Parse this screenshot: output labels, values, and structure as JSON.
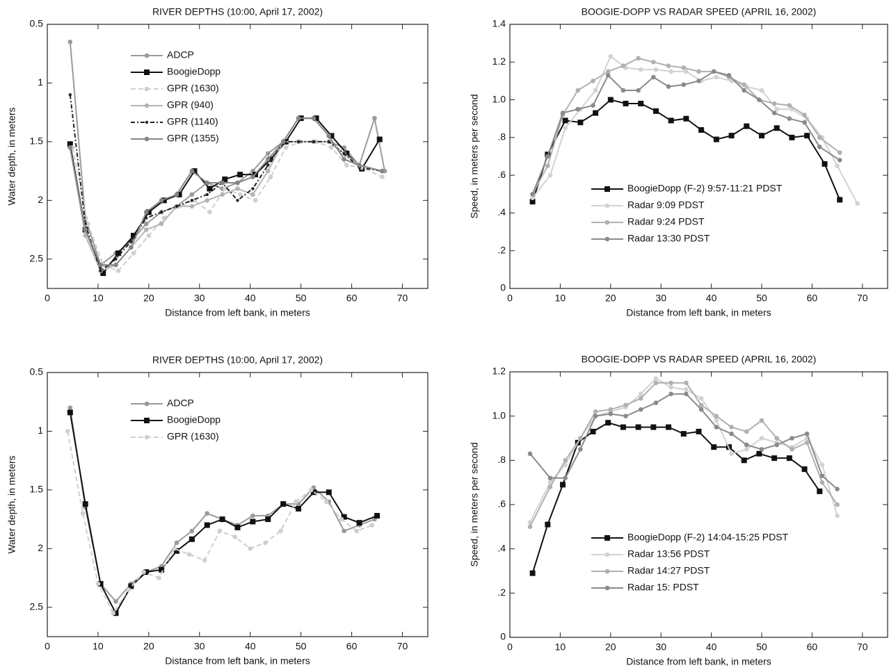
{
  "chart_data": [
    {
      "type": "line",
      "title": "RIVER DEPTHS (10:00, April 17, 2002)",
      "x_label": "Distance from left bank, in meters",
      "y_label": "Water depth, in meters",
      "xlim": [
        0,
        75
      ],
      "xticks": [
        0,
        10,
        20,
        30,
        40,
        50,
        60,
        70
      ],
      "ylim": [
        0.5,
        2.75
      ],
      "yticks": [
        0.5,
        1,
        1.5,
        2,
        2.5
      ],
      "invert_y": true,
      "legend": "upper left",
      "series": [
        {
          "name": "ADCP",
          "color": "#9a9a9a",
          "marker": "circle",
          "line_style": "solid",
          "x": [
            4.5,
            7.5,
            10.5,
            13.5,
            16.5,
            19.5,
            22.5,
            25.5,
            28.5,
            31.5,
            34.5,
            37.5,
            40.5,
            43.5,
            46.5,
            49.5,
            52.5,
            55.5,
            58.5,
            61.5,
            64.5,
            66.5
          ],
          "values": [
            0.65,
            2.15,
            2.55,
            2.45,
            2.35,
            2.2,
            2.1,
            2.05,
            1.95,
            1.85,
            1.9,
            1.85,
            1.75,
            1.6,
            1.5,
            1.5,
            1.5,
            1.5,
            1.55,
            1.7,
            1.3,
            1.75
          ]
        },
        {
          "name": "BoogieDopp",
          "color": "#111111",
          "marker": "square",
          "line_style": "solid",
          "x": [
            4.5,
            7.5,
            11,
            14,
            17,
            20,
            23,
            26,
            29,
            32,
            35,
            38,
            41,
            44,
            47,
            50,
            53,
            56,
            59,
            62,
            65.5
          ],
          "values": [
            1.52,
            2.25,
            2.62,
            2.45,
            2.3,
            2.1,
            2.0,
            1.95,
            1.75,
            1.9,
            1.82,
            1.78,
            1.78,
            1.65,
            1.5,
            1.3,
            1.3,
            1.45,
            1.6,
            1.73,
            1.48
          ]
        },
        {
          "name": "GPR (1630)",
          "color": "#cfcfcf",
          "marker": "circle",
          "line_style": "dashed",
          "x": [
            5,
            8,
            11,
            14,
            17,
            20,
            23,
            26,
            29,
            32,
            35,
            38,
            41,
            44,
            47,
            50,
            53,
            56,
            59,
            62,
            66
          ],
          "values": [
            1.55,
            2.2,
            2.55,
            2.6,
            2.45,
            2.3,
            2.15,
            2.05,
            2.0,
            2.1,
            1.9,
            1.95,
            2.0,
            1.8,
            1.55,
            1.5,
            1.5,
            1.55,
            1.7,
            1.72,
            1.8
          ]
        },
        {
          "name": "GPR (940)",
          "color": "#b5b5b5",
          "marker": "circle",
          "line_style": "solid",
          "x": [
            4.5,
            7.5,
            10.5,
            13.5,
            16.5,
            19.5,
            22.5,
            25.5,
            28.5,
            31.5,
            34.5,
            37.5,
            40.5,
            43.5,
            46.5,
            49.5,
            52.5,
            55.5,
            58.5,
            61.5,
            66
          ],
          "values": [
            1.55,
            2.3,
            2.6,
            2.55,
            2.4,
            2.25,
            2.2,
            2.05,
            2.05,
            2.0,
            1.95,
            1.9,
            1.95,
            1.75,
            1.5,
            1.5,
            1.5,
            1.5,
            1.6,
            1.7,
            1.75
          ]
        },
        {
          "name": "GPR (1140)",
          "color": "#222222",
          "marker": "star",
          "line_style": "dashdot",
          "x": [
            4.5,
            7.5,
            10.5,
            13.5,
            16.5,
            19.5,
            22.5,
            25.5,
            28.5,
            31.5,
            34.5,
            37.5,
            40.5,
            43.5,
            46.5,
            49.5,
            52.5,
            55.5,
            58.5,
            61.5,
            66
          ],
          "values": [
            1.1,
            2.2,
            2.6,
            2.5,
            2.35,
            2.15,
            2.1,
            2.05,
            2.0,
            1.95,
            1.85,
            2.0,
            1.9,
            1.7,
            1.5,
            1.5,
            1.5,
            1.5,
            1.6,
            1.72,
            1.75
          ]
        },
        {
          "name": "GPR (1355)",
          "color": "#858585",
          "marker": "circle",
          "line_style": "solid",
          "x": [
            4.5,
            7.5,
            10.5,
            13.5,
            16.5,
            19.5,
            22.5,
            25.5,
            28.5,
            31.5,
            34.5,
            37.5,
            40.5,
            43.5,
            46.5,
            49.5,
            52.5,
            55.5,
            58.5,
            61.5,
            66
          ],
          "values": [
            1.55,
            2.25,
            2.55,
            2.55,
            2.4,
            2.1,
            2.0,
            1.95,
            1.75,
            1.85,
            1.85,
            1.85,
            1.8,
            1.65,
            1.5,
            1.3,
            1.3,
            1.45,
            1.65,
            1.7,
            1.75
          ]
        }
      ]
    },
    {
      "type": "line",
      "title": "BOOGIE-DOPP VS RADAR SPEED (APRIL 16, 2002)",
      "x_label": "Distance from left bank, in meters",
      "y_label": "Speed, in meters per second",
      "xlim": [
        0,
        75
      ],
      "xticks": [
        0,
        10,
        20,
        30,
        40,
        50,
        60,
        70
      ],
      "ylim": [
        0,
        1.4
      ],
      "yticks": [
        0,
        {
          "value": 0.2,
          "label": ".2"
        },
        {
          "value": 0.4,
          "label": ".4"
        },
        {
          "value": 0.6,
          "label": ".6"
        },
        {
          "value": 0.8,
          "label": ".8"
        },
        {
          "value": 1,
          "label": "1.0"
        },
        1.2,
        1.4
      ],
      "legend": "lower center",
      "series": [
        {
          "name": "BoogieDopp (F-2) 9:57-11:21 PDST",
          "color": "#111111",
          "marker": "square",
          "line_style": "solid",
          "x": [
            4.5,
            7.5,
            11,
            14,
            17,
            20,
            23,
            26,
            29,
            32,
            35,
            38,
            41,
            44,
            47,
            50,
            53,
            56,
            59,
            62.5,
            65.5
          ],
          "values": [
            0.46,
            0.71,
            0.89,
            0.88,
            0.93,
            1.0,
            0.98,
            0.98,
            0.94,
            0.89,
            0.9,
            0.84,
            0.79,
            0.81,
            0.86,
            0.81,
            0.85,
            0.8,
            0.81,
            0.66,
            0.47
          ]
        },
        {
          "name": "Radar 9:09 PDST",
          "color": "#d2d2d2",
          "marker": "circle",
          "line_style": "solid",
          "x": [
            4.5,
            8,
            11,
            14,
            17,
            20,
            23,
            26,
            29,
            32,
            35,
            38,
            41,
            44,
            47,
            50,
            53,
            56,
            59,
            62,
            65,
            69
          ],
          "values": [
            0.48,
            0.6,
            0.85,
            0.95,
            1.05,
            1.23,
            1.17,
            1.16,
            1.16,
            1.15,
            1.15,
            1.1,
            1.12,
            1.1,
            1.07,
            1.05,
            0.95,
            0.95,
            0.9,
            0.8,
            0.65,
            0.45
          ]
        },
        {
          "name": "Radar 9:24 PDST",
          "color": "#b0b0b0",
          "marker": "circle",
          "line_style": "solid",
          "x": [
            4.5,
            7.5,
            10.5,
            13.5,
            16.5,
            19.5,
            22.5,
            25.5,
            28.5,
            31.5,
            34.5,
            37.5,
            40.5,
            43.5,
            46.5,
            49.5,
            52.5,
            55.5,
            58.5,
            61.5,
            65.5
          ],
          "values": [
            0.5,
            0.65,
            0.92,
            1.05,
            1.1,
            1.15,
            1.18,
            1.22,
            1.2,
            1.18,
            1.17,
            1.15,
            1.15,
            1.12,
            1.08,
            1.0,
            0.98,
            0.97,
            0.92,
            0.8,
            0.72
          ]
        },
        {
          "name": "Radar 13:30 PDST",
          "color": "#8a8a8a",
          "marker": "circle",
          "line_style": "solid",
          "x": [
            4.5,
            7.5,
            10.5,
            13.5,
            16.5,
            19.5,
            22.5,
            25.5,
            28.5,
            31.5,
            34.5,
            37.5,
            40.5,
            43.5,
            46.5,
            49.5,
            52.5,
            55.5,
            58.5,
            61.5,
            65.5
          ],
          "values": [
            0.5,
            0.7,
            0.93,
            0.95,
            0.97,
            1.13,
            1.05,
            1.05,
            1.12,
            1.07,
            1.08,
            1.1,
            1.15,
            1.13,
            1.05,
            1.0,
            0.93,
            0.9,
            0.88,
            0.75,
            0.68
          ]
        }
      ]
    },
    {
      "type": "line",
      "title": "RIVER DEPTHS (10:00, April 17, 2002)",
      "x_label": "Distance from left bank, in meters",
      "y_label": "Water depth, in meters",
      "xlim": [
        0,
        75
      ],
      "xticks": [
        0,
        10,
        20,
        30,
        40,
        50,
        60,
        70
      ],
      "ylim": [
        0.5,
        2.75
      ],
      "yticks": [
        0.5,
        1,
        1.5,
        2,
        2.5
      ],
      "invert_y": true,
      "legend": "upper left",
      "series": [
        {
          "name": "ADCP",
          "color": "#9a9a9a",
          "marker": "circle",
          "line_style": "solid",
          "x": [
            4.5,
            7.5,
            10.5,
            13.5,
            16.5,
            19.5,
            22.5,
            25.5,
            28.5,
            31.5,
            34.5,
            37.5,
            40.5,
            43.5,
            46.5,
            49.5,
            52.5,
            55.5,
            58.5,
            61.5,
            64.5
          ],
          "values": [
            0.8,
            1.65,
            2.3,
            2.45,
            2.3,
            2.2,
            2.15,
            1.95,
            1.85,
            1.7,
            1.75,
            1.8,
            1.72,
            1.72,
            1.62,
            1.62,
            1.48,
            1.6,
            1.85,
            1.8,
            1.75
          ]
        },
        {
          "name": "BoogieDopp",
          "color": "#111111",
          "marker": "square",
          "line_style": "solid",
          "x": [
            4.5,
            7.5,
            10.5,
            13.5,
            16.5,
            19.5,
            22.5,
            25.5,
            28.5,
            31.5,
            34.5,
            37.5,
            40.5,
            43.5,
            46.5,
            49.5,
            52.5,
            55.5,
            58.5,
            61.5,
            65
          ],
          "values": [
            0.84,
            1.62,
            2.3,
            2.55,
            2.32,
            2.2,
            2.18,
            2.02,
            1.92,
            1.8,
            1.75,
            1.82,
            1.77,
            1.75,
            1.62,
            1.66,
            1.52,
            1.52,
            1.73,
            1.78,
            1.72
          ]
        },
        {
          "name": "GPR (1630)",
          "color": "#cfcfcf",
          "marker": "circle",
          "line_style": "dashed",
          "x": [
            4,
            7,
            10,
            13,
            16,
            19,
            22,
            25,
            28,
            31,
            34,
            37,
            40,
            43,
            46,
            49,
            52,
            55,
            58,
            61,
            64
          ],
          "values": [
            1.0,
            1.7,
            2.3,
            2.55,
            2.35,
            2.2,
            2.25,
            2.0,
            2.05,
            2.1,
            1.85,
            1.9,
            2.0,
            1.95,
            1.85,
            1.6,
            1.5,
            1.6,
            1.75,
            1.85,
            1.8
          ]
        }
      ]
    },
    {
      "type": "line",
      "title": "BOOGIE-DOPP VS RADAR SPEED (APRIL 16, 2002)",
      "x_label": "Distance from left bank, in meters",
      "y_label": "Speed, in meters per second",
      "xlim": [
        0,
        75
      ],
      "xticks": [
        0,
        10,
        20,
        30,
        40,
        50,
        60,
        70
      ],
      "ylim": [
        0,
        1.2
      ],
      "yticks": [
        0,
        {
          "value": 0.2,
          "label": ".2"
        },
        {
          "value": 0.4,
          "label": ".4"
        },
        {
          "value": 0.6,
          "label": ".6"
        },
        {
          "value": 0.8,
          "label": ".8"
        },
        {
          "value": 1,
          "label": "1.0"
        },
        1.2
      ],
      "legend": "lower center",
      "series": [
        {
          "name": "BoogieDopp (F-2) 14:04-15:25 PDST",
          "color": "#111111",
          "marker": "square",
          "line_style": "solid",
          "x": [
            4.5,
            7.5,
            10.5,
            13.5,
            16.5,
            19.5,
            22.5,
            25.5,
            28.5,
            31.5,
            34.5,
            37.5,
            40.5,
            43.5,
            46.5,
            49.5,
            52.5,
            55.5,
            58.5,
            61.5
          ],
          "values": [
            0.29,
            0.51,
            0.69,
            0.88,
            0.93,
            0.97,
            0.95,
            0.95,
            0.95,
            0.95,
            0.92,
            0.93,
            0.86,
            0.86,
            0.8,
            0.83,
            0.81,
            0.81,
            0.76,
            0.66
          ]
        },
        {
          "name": "Radar 13:56 PDST",
          "color": "#d2d2d2",
          "marker": "circle",
          "line_style": "solid",
          "x": [
            4,
            8,
            11,
            14,
            17,
            20,
            23,
            26,
            29,
            32,
            35,
            38,
            41,
            44,
            47,
            50,
            53,
            56,
            59,
            62,
            65
          ],
          "values": [
            0.52,
            0.7,
            0.78,
            0.9,
            1.0,
            1.02,
            1.04,
            1.1,
            1.17,
            1.13,
            1.12,
            1.08,
            0.98,
            0.83,
            0.85,
            0.9,
            0.88,
            0.86,
            0.9,
            0.78,
            0.55
          ]
        },
        {
          "name": "Radar 14:27 PDST",
          "color": "#b0b0b0",
          "marker": "circle",
          "line_style": "solid",
          "x": [
            4,
            8,
            11,
            14,
            17,
            20,
            23,
            26,
            29,
            32,
            35,
            38,
            41,
            44,
            47,
            50,
            53,
            56,
            59,
            62,
            65
          ],
          "values": [
            0.5,
            0.68,
            0.8,
            0.9,
            1.02,
            1.03,
            1.05,
            1.08,
            1.15,
            1.15,
            1.15,
            1.05,
            1.0,
            0.95,
            0.93,
            0.98,
            0.9,
            0.85,
            0.88,
            0.7,
            0.6
          ]
        },
        {
          "name": "Radar 15: PDST",
          "color": "#8a8a8a",
          "marker": "circle",
          "line_style": "solid",
          "x": [
            4,
            8,
            11,
            14,
            17,
            20,
            23,
            26,
            29,
            32,
            35,
            38,
            41,
            44,
            47,
            50,
            53,
            56,
            59,
            62,
            65
          ],
          "values": [
            0.83,
            0.72,
            0.72,
            0.85,
            1.0,
            1.01,
            1.0,
            1.03,
            1.06,
            1.1,
            1.1,
            1.03,
            0.95,
            0.92,
            0.87,
            0.85,
            0.87,
            0.9,
            0.92,
            0.73,
            0.67
          ]
        }
      ]
    }
  ]
}
